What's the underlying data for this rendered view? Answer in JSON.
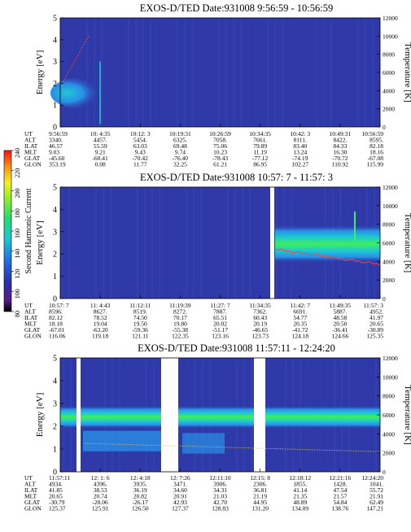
{
  "colorbar": {
    "label": "Second Harmonic Current",
    "ticks": [
      240,
      220,
      200,
      180,
      160,
      140,
      120,
      100,
      80
    ],
    "range": [
      80,
      240
    ]
  },
  "row_labels": [
    "UT",
    "ALT",
    "ILAT",
    "MLT",
    "GLAT",
    "GLON"
  ],
  "colors": {
    "background": "#2f3aa8",
    "band_core": "#3cf05a",
    "band_mid": "#1ec8d2",
    "band_outer": "#2a8ee6",
    "temperature_trace": "#ff4040"
  },
  "chart_data": [
    {
      "type": "heatmap",
      "title": "EXOS-D/TED   Date:931008   9:56:59 - 10:56:59",
      "ylabel": "Energy [eV]",
      "y2label": "Temperature [K]",
      "ylim": [
        0,
        5
      ],
      "y2lim": [
        0,
        12000
      ],
      "yticks": [
        0,
        1,
        2,
        3,
        4,
        5
      ],
      "y2ticks": [
        0,
        2000,
        4000,
        6000,
        8000,
        10000,
        12000
      ],
      "columns": [
        {
          "UT": "9:56:59",
          "ALT": "3340.",
          "ILAT": "46.57",
          "MLT": "9.03",
          "GLAT": "-45.60",
          "GLON": "353.19"
        },
        {
          "UT": "10: 4:35",
          "ALT": "4457.",
          "ILAT": "55.59",
          "MLT": "9.21",
          "GLAT": "-60.41",
          "GLON": "0.08"
        },
        {
          "UT": "10:12: 3",
          "ALT": "5454.",
          "ILAT": "63.03",
          "MLT": "9.43",
          "GLAT": "-70.42",
          "GLON": "11.77"
        },
        {
          "UT": "10:19:31",
          "ALT": "6325.",
          "ILAT": "69.48",
          "MLT": "9.74",
          "GLAT": "-76.40",
          "GLON": "32.25"
        },
        {
          "UT": "10:26:59",
          "ALT": "7058.",
          "ILAT": "75.06",
          "MLT": "10.23",
          "GLAT": "-78.43",
          "GLON": "61.21"
        },
        {
          "UT": "10:34:35",
          "ALT": "7661.",
          "ILAT": "79.89",
          "MLT": "11.19",
          "GLAT": "-77.12",
          "GLON": "86.95"
        },
        {
          "UT": "10:42: 3",
          "ALT": "8111.",
          "ILAT": "83.40",
          "MLT": "13.24",
          "GLAT": "-74.19",
          "GLON": "102.27"
        },
        {
          "UT": "10:49:31",
          "ALT": "8422.",
          "ILAT": "84.33",
          "MLT": "16.30",
          "GLAT": "-70.72",
          "GLON": "110.92"
        },
        {
          "UT": "10:56:59",
          "ALT": "8595.",
          "ILAT": "82.18",
          "MLT": "18.16",
          "GLAT": "-67.08",
          "GLON": "115.99"
        }
      ]
    },
    {
      "type": "heatmap",
      "title": "EXOS-D/TED   Date:931008   10:57: 7 - 11:57: 3",
      "ylabel": "Energy [eV]",
      "y2label": "Temperature [K]",
      "ylim": [
        0,
        5
      ],
      "y2lim": [
        0,
        12000
      ],
      "yticks": [
        0,
        1,
        2,
        3,
        4,
        5
      ],
      "y2ticks": [
        0,
        2000,
        4000,
        6000,
        8000,
        10000,
        12000
      ],
      "columns": [
        {
          "UT": "10:57: 7",
          "ALT": "8596.",
          "ILAT": "82.12",
          "MLT": "18.18",
          "GLAT": "-67.01",
          "GLON": "116.06"
        },
        {
          "UT": "11: 4:43",
          "ALT": "8627.",
          "ILAT": "78.52",
          "MLT": "19.04",
          "GLAT": "-63.20",
          "GLON": "119.18"
        },
        {
          "UT": "11:12:11",
          "ALT": "8519.",
          "ILAT": "74.50",
          "MLT": "19.50",
          "GLAT": "-59.36",
          "GLON": "121.11"
        },
        {
          "UT": "11:19:39",
          "ALT": "8272.",
          "ILAT": "70.17",
          "MLT": "19.80",
          "GLAT": "-55.38",
          "GLON": "122.35"
        },
        {
          "UT": "11:27: 7",
          "ALT": "7887.",
          "ILAT": "65.51",
          "MLT": "20.02",
          "GLAT": "-51.17",
          "GLON": "123.16"
        },
        {
          "UT": "11:34:35",
          "ALT": "7362.",
          "ILAT": "60.43",
          "MLT": "20.19",
          "GLAT": "-46.65",
          "GLON": "123.73"
        },
        {
          "UT": "11:42: 7",
          "ALT": "6691.",
          "ILAT": "54.77",
          "MLT": "20.35",
          "GLAT": "-41.72",
          "GLON": "124.18"
        },
        {
          "UT": "11:49:35",
          "ALT": "5887.",
          "ILAT": "48.58",
          "MLT": "20.50",
          "GLAT": "-36.41",
          "GLON": "124.66"
        },
        {
          "UT": "11:57: 3",
          "ALT": "4952.",
          "ILAT": "41.97",
          "MLT": "20.65",
          "GLAT": "-30.89",
          "GLON": "125.35"
        }
      ]
    },
    {
      "type": "heatmap",
      "title": "EXOS-D/TED   Date:931008   11:57:11 - 12:24:20",
      "ylabel": "Energy [eV]",
      "y2label": "Temperature [K]",
      "ylim": [
        0,
        5
      ],
      "y2lim": [
        0,
        12000
      ],
      "yticks": [
        0,
        1,
        2,
        3,
        4,
        5
      ],
      "y2ticks": [
        0,
        2000,
        4000,
        6000,
        8000,
        10000,
        12000
      ],
      "columns": [
        {
          "UT": "11:57:11",
          "ALT": "4934.",
          "ILAT": "41.85",
          "MLT": "20.65",
          "GLAT": "-30.79",
          "GLON": "125.37"
        },
        {
          "UT": "12: 1: 6",
          "ALT": "4396.",
          "ILAT": "38.53",
          "MLT": "20.74",
          "GLAT": "-28.06",
          "GLON": "125.91"
        },
        {
          "UT": "12: 4:18",
          "ALT": "3935.",
          "ILAT": "36.19",
          "MLT": "20.82",
          "GLAT": "-26.17",
          "GLON": "126.50"
        },
        {
          "UT": "12: 7:26",
          "ALT": "3471.",
          "ILAT": "34.60",
          "MLT": "20.91",
          "GLAT": "42.93",
          "GLON": "127.37"
        },
        {
          "UT": "12:11:10",
          "ALT": "3906.",
          "ILAT": "34.31",
          "MLT": "21.03",
          "GLAT": "42.70",
          "GLON": "128.83"
        },
        {
          "UT": "12:15: 8",
          "ALT": "2306.",
          "ILAT": "36.81",
          "MLT": "21.19",
          "GLAT": "44.95",
          "GLON": "131.20"
        },
        {
          "UT": "12:18:12",
          "ALT": "1855.",
          "ILAT": "41.14",
          "MLT": "21.35",
          "GLAT": "48.89",
          "GLON": "134.09"
        },
        {
          "UT": "12:21:16",
          "ALT": "1428.",
          "ILAT": "47.54",
          "MLT": "21.57",
          "GLAT": "54.84",
          "GLON": "138.76"
        },
        {
          "UT": "12:24:20",
          "ALT": "1041.",
          "ILAT": "55.72",
          "MLT": "21.91",
          "GLAT": "62.49",
          "GLON": "147.21"
        }
      ]
    }
  ]
}
